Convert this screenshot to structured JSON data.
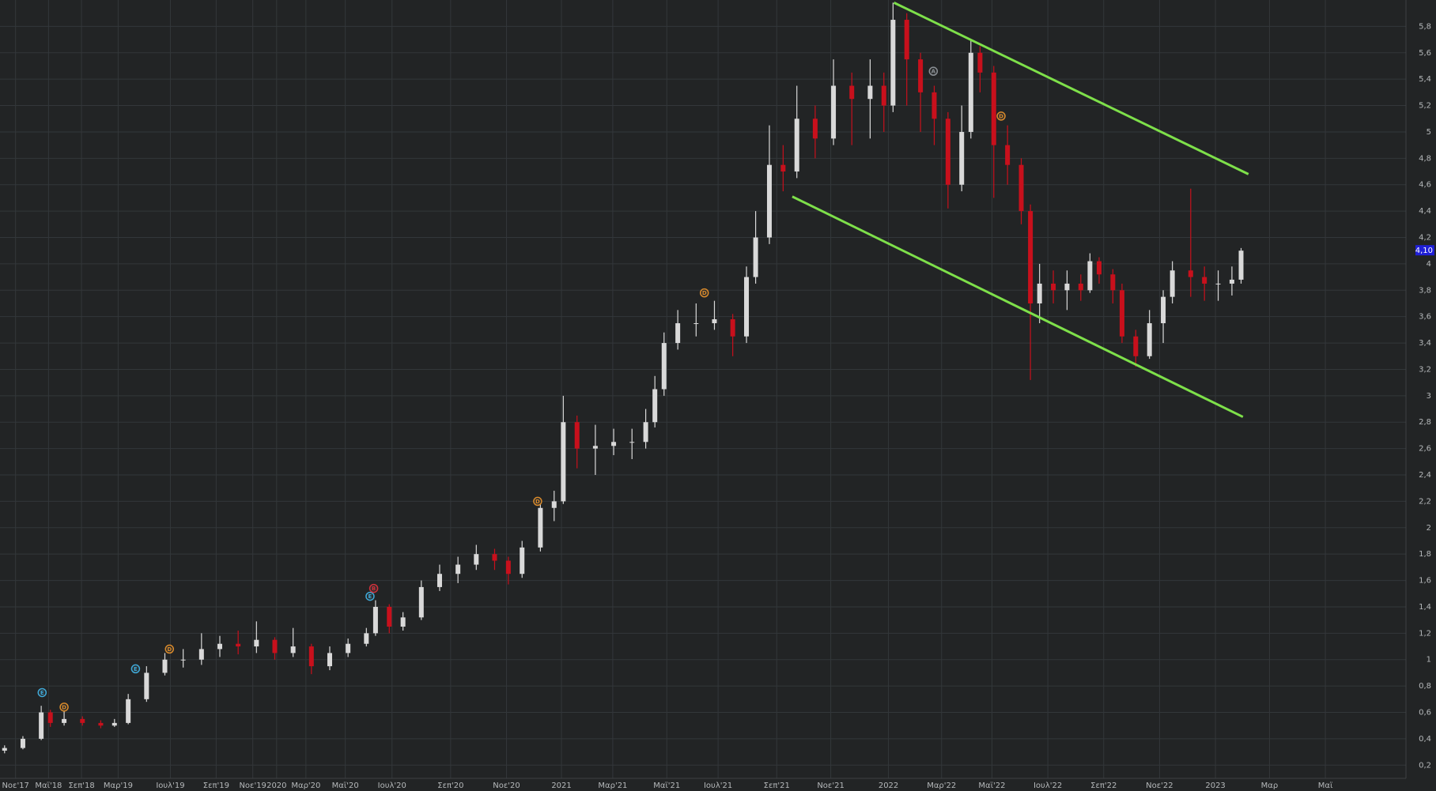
{
  "chart_data": {
    "type": "candlestick",
    "up_color": "#d9d9d9",
    "down_color": "#c8101c",
    "grid": true,
    "xlim": [
      0,
      1535
    ],
    "ylim": [
      0.1,
      6.0
    ],
    "x": [
      5,
      25,
      45,
      55,
      70,
      90,
      110,
      125,
      140,
      160,
      180,
      200,
      220,
      240,
      260,
      280,
      300,
      320,
      340,
      360,
      380,
      400,
      410,
      425,
      440,
      460,
      480,
      500,
      520,
      540,
      555,
      570,
      590,
      605,
      615,
      630,
      650,
      670,
      690,
      705,
      715,
      725,
      740,
      760,
      780,
      800,
      815,
      825,
      840,
      855,
      870,
      890,
      910,
      930,
      950,
      965,
      975,
      990,
      1005,
      1020,
      1035,
      1050,
      1060,
      1070,
      1085,
      1100,
      1115,
      1125,
      1135,
      1150,
      1165,
      1180,
      1190,
      1200,
      1215,
      1225,
      1240,
      1255,
      1270,
      1280,
      1300,
      1315,
      1330,
      1345,
      1355
    ],
    "open": [
      0.31,
      0.33,
      0.4,
      0.6,
      0.52,
      0.55,
      0.52,
      0.5,
      0.52,
      0.7,
      0.9,
      1.0,
      1.0,
      1.08,
      1.12,
      1.1,
      1.15,
      1.05,
      1.1,
      0.95,
      1.05,
      1.12,
      1.2,
      1.4,
      1.25,
      1.32,
      1.55,
      1.65,
      1.72,
      1.8,
      1.75,
      1.65,
      1.85,
      2.15,
      2.2,
      2.8,
      2.6,
      2.62,
      2.65,
      2.65,
      2.8,
      3.05,
      3.4,
      3.55,
      3.55,
      3.58,
      3.45,
      3.9,
      4.2,
      4.75,
      4.7,
      5.1,
      4.95,
      5.35,
      5.25,
      5.35,
      5.2,
      5.85,
      5.55,
      5.3,
      5.1,
      4.6,
      5.0,
      5.6,
      5.45,
      4.9,
      4.75,
      4.4,
      3.7,
      3.85,
      3.8,
      3.85,
      3.8,
      4.02,
      3.92,
      3.8,
      3.45,
      3.3,
      3.55,
      3.75,
      3.95,
      3.9,
      3.85,
      3.85,
      3.88
    ],
    "high": [
      0.35,
      0.42,
      0.65,
      0.62,
      0.65,
      0.57,
      0.54,
      0.55,
      0.74,
      0.95,
      1.05,
      1.08,
      1.2,
      1.18,
      1.22,
      1.29,
      1.17,
      1.24,
      1.12,
      1.1,
      1.16,
      1.24,
      1.45,
      1.42,
      1.36,
      1.6,
      1.72,
      1.78,
      1.87,
      1.84,
      1.78,
      1.9,
      2.22,
      2.28,
      3.0,
      2.85,
      2.78,
      2.75,
      2.75,
      2.9,
      3.15,
      3.48,
      3.65,
      3.7,
      3.72,
      3.62,
      3.98,
      4.4,
      5.05,
      4.9,
      5.35,
      5.2,
      5.55,
      5.45,
      5.55,
      5.45,
      5.98,
      5.9,
      5.6,
      5.35,
      5.15,
      5.2,
      5.7,
      5.65,
      5.5,
      5.05,
      4.8,
      4.45,
      4.0,
      3.95,
      3.95,
      3.92,
      4.08,
      4.05,
      3.96,
      3.85,
      3.5,
      3.65,
      3.8,
      4.02,
      4.57,
      3.98,
      3.95,
      3.98,
      4.12
    ],
    "low": [
      0.29,
      0.32,
      0.39,
      0.49,
      0.5,
      0.5,
      0.48,
      0.49,
      0.51,
      0.68,
      0.88,
      0.94,
      0.96,
      1.02,
      1.04,
      1.05,
      1.0,
      1.02,
      0.89,
      0.92,
      1.02,
      1.1,
      1.18,
      1.2,
      1.22,
      1.3,
      1.52,
      1.58,
      1.68,
      1.68,
      1.57,
      1.62,
      1.82,
      2.05,
      2.18,
      2.45,
      2.4,
      2.55,
      2.52,
      2.6,
      2.76,
      3.0,
      3.35,
      3.45,
      3.5,
      3.3,
      3.4,
      3.85,
      4.15,
      4.55,
      4.65,
      4.8,
      4.9,
      4.9,
      4.95,
      5.0,
      5.15,
      5.2,
      5.0,
      4.9,
      4.42,
      4.55,
      4.95,
      5.3,
      4.5,
      4.6,
      4.3,
      3.12,
      3.55,
      3.7,
      3.65,
      3.72,
      3.78,
      3.85,
      3.7,
      3.4,
      3.22,
      3.28,
      3.4,
      3.7,
      3.75,
      3.72,
      3.72,
      3.76,
      3.85
    ],
    "close": [
      0.33,
      0.4,
      0.6,
      0.52,
      0.55,
      0.52,
      0.5,
      0.52,
      0.7,
      0.9,
      1.0,
      1.0,
      1.08,
      1.12,
      1.1,
      1.15,
      1.05,
      1.1,
      0.95,
      1.05,
      1.12,
      1.2,
      1.4,
      1.25,
      1.32,
      1.55,
      1.65,
      1.72,
      1.8,
      1.75,
      1.65,
      1.85,
      2.15,
      2.2,
      2.8,
      2.6,
      2.62,
      2.65,
      2.65,
      2.8,
      3.05,
      3.4,
      3.55,
      3.55,
      3.58,
      3.45,
      3.9,
      4.2,
      4.75,
      4.7,
      5.1,
      4.95,
      5.35,
      5.25,
      5.35,
      5.2,
      5.85,
      5.55,
      5.3,
      5.1,
      4.6,
      5.0,
      5.6,
      5.45,
      4.9,
      4.75,
      4.4,
      3.7,
      3.85,
      3.8,
      3.85,
      3.8,
      4.02,
      3.92,
      3.8,
      3.45,
      3.3,
      3.55,
      3.75,
      3.95,
      3.9,
      3.85,
      3.85,
      3.88,
      4.1
    ],
    "yticks": [
      {
        "value": 0.2,
        "label": "0,2"
      },
      {
        "value": 0.4,
        "label": "0,4"
      },
      {
        "value": 0.6,
        "label": "0,6"
      },
      {
        "value": 0.8,
        "label": "0,8"
      },
      1,
      {
        "value": 1.2,
        "label": "1,2"
      },
      {
        "value": 1.4,
        "label": "1,4"
      },
      {
        "value": 1.6,
        "label": "1,6"
      },
      {
        "value": 1.8,
        "label": "1,8"
      },
      2,
      {
        "value": 2.2,
        "label": "2,2"
      },
      {
        "value": 2.4,
        "label": "2,4"
      },
      {
        "value": 2.6,
        "label": "2,6"
      },
      {
        "value": 2.8,
        "label": "2,8"
      },
      3,
      {
        "value": 3.2,
        "label": "3,2"
      },
      {
        "value": 3.4,
        "label": "3,4"
      },
      {
        "value": 3.6,
        "label": "3,6"
      },
      {
        "value": 3.8,
        "label": "3,8"
      },
      4,
      {
        "value": 4.2,
        "label": "4,2"
      },
      {
        "value": 4.4,
        "label": "4,4"
      },
      {
        "value": 4.6,
        "label": "4,6"
      },
      {
        "value": 4.8,
        "label": "4,8"
      },
      5,
      {
        "value": 5.2,
        "label": "5,2"
      },
      {
        "value": 5.4,
        "label": "5,4"
      },
      {
        "value": 5.6,
        "label": "5,6"
      },
      {
        "value": 5.8,
        "label": "5,8"
      }
    ],
    "xticks": [
      {
        "value": 17,
        "label": "Νοε'17"
      },
      {
        "value": 53,
        "label": "Μαϊ'18"
      },
      {
        "value": 89,
        "label": "Σεπ'18"
      },
      {
        "value": 129,
        "label": "Μαρ'19"
      },
      {
        "value": 186,
        "label": "Ιουλ'19"
      },
      {
        "value": 236,
        "label": "Σεπ'19"
      },
      {
        "value": 276,
        "label": "Νοε'19"
      },
      {
        "value": 302,
        "label": "2020"
      },
      {
        "value": 334,
        "label": "Μαρ'20"
      },
      {
        "value": 377,
        "label": "Μαϊ'20"
      },
      {
        "value": 428,
        "label": "Ιουλ'20"
      },
      {
        "value": 492,
        "label": "Σεπ'20"
      },
      {
        "value": 553,
        "label": "Νοε'20"
      },
      {
        "value": 613,
        "label": "2021"
      },
      {
        "value": 669,
        "label": "Μαρ'21"
      },
      {
        "value": 728,
        "label": "Μαϊ'21"
      },
      {
        "value": 784,
        "label": "Ιουλ'21"
      },
      {
        "value": 848,
        "label": "Σεπ'21"
      },
      {
        "value": 907,
        "label": "Νοε'21"
      },
      {
        "value": 970,
        "label": "2022"
      },
      {
        "value": 1028,
        "label": "Μαρ'22"
      },
      {
        "value": 1083,
        "label": "Μαϊ'22"
      },
      {
        "value": 1144,
        "label": "Ιουλ'22"
      },
      {
        "value": 1205,
        "label": "Σεπ'22"
      },
      {
        "value": 1266,
        "label": "Νοε'22"
      },
      {
        "value": 1327,
        "label": "2023"
      },
      {
        "value": 1386,
        "label": "Μαρ"
      },
      {
        "value": 1447,
        "label": "Μαϊ"
      }
    ],
    "trendlines": [
      {
        "color": "#7ee04a",
        "x": [
          976,
          1363
        ],
        "y": [
          5.98,
          4.68
        ]
      },
      {
        "color": "#7ee04a",
        "x": [
          865,
          1357
        ],
        "y": [
          4.51,
          2.84
        ]
      }
    ],
    "events": [
      {
        "label": "E",
        "color": "#3fa9d8",
        "x": 46,
        "y": 0.75
      },
      {
        "label": "D",
        "color": "#d98a2b",
        "x": 70,
        "y": 0.64
      },
      {
        "label": "E",
        "color": "#3fa9d8",
        "x": 148,
        "y": 0.93
      },
      {
        "label": "D",
        "color": "#d98a2b",
        "x": 185,
        "y": 1.08
      },
      {
        "label": "E",
        "color": "#3fa9d8",
        "x": 404,
        "y": 1.48
      },
      {
        "label": "B",
        "color": "#d0303a",
        "x": 408,
        "y": 1.54
      },
      {
        "label": "D",
        "color": "#d98a2b",
        "x": 587,
        "y": 2.2
      },
      {
        "label": "D",
        "color": "#d98a2b",
        "x": 769,
        "y": 3.78
      },
      {
        "label": "A",
        "color": "#8a8f94",
        "x": 1019,
        "y": 5.46
      },
      {
        "label": "D",
        "color": "#d98a2b",
        "x": 1093,
        "y": 5.12
      }
    ],
    "last_price": {
      "value": 4.1,
      "label": "4,10",
      "color": "#1f1fd6"
    }
  }
}
